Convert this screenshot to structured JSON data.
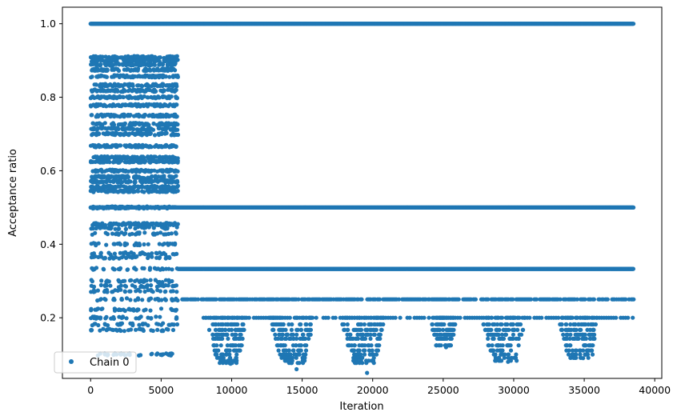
{
  "chart_data": {
    "type": "scatter",
    "xlabel": "Iteration",
    "ylabel": "Acceptance ratio",
    "xlim": [
      -2000,
      40500
    ],
    "ylim": [
      0.035,
      1.045
    ],
    "x_ticks": [
      0,
      5000,
      10000,
      15000,
      20000,
      25000,
      30000,
      35000,
      40000
    ],
    "x_tick_labels": [
      "0",
      "5000",
      "10000",
      "15000",
      "20000",
      "25000",
      "30000",
      "35000",
      "40000"
    ],
    "y_ticks": [
      0.2,
      0.4,
      0.6,
      0.8,
      1.0
    ],
    "y_tick_labels": [
      "0.2",
      "0.4",
      "0.6",
      "0.8",
      "1.0"
    ],
    "grid": false,
    "legend": {
      "position": "lower-left",
      "entries": [
        "Chain 0"
      ]
    },
    "series": [
      {
        "name": "Chain 0",
        "color": "#1f77b4",
        "marker": "circle",
        "bands": [
          {
            "y": 1.0,
            "x_range": [
              0,
              38500
            ],
            "density": "dense"
          },
          {
            "y": 0.5,
            "x_range": [
              0,
              38500
            ],
            "density": "dense"
          },
          {
            "y": 0.333,
            "x_range": [
              6200,
              38500
            ],
            "density": "dense"
          },
          {
            "y": 0.25,
            "x_range": [
              6500,
              38500
            ],
            "density": "medium"
          },
          {
            "y": 0.2,
            "x_range": [
              7500,
              38500
            ],
            "density": "sparse"
          }
        ],
        "early_cluster": {
          "x_range": [
            0,
            6200
          ],
          "levels": [
            0.909,
            0.9,
            0.889,
            0.875,
            0.857,
            0.833,
            0.818,
            0.8,
            0.778,
            0.75,
            0.727,
            0.714,
            0.7,
            0.667,
            0.636,
            0.625,
            0.6,
            0.583,
            0.571,
            0.556,
            0.545,
            0.5,
            0.455,
            0.444,
            0.429,
            0.4,
            0.375,
            0.364,
            0.333,
            0.3,
            0.286,
            0.273,
            0.25,
            0.222,
            0.2,
            0.182,
            0.167,
            0.1
          ]
        },
        "dips": [
          {
            "x_range": [
              8000,
              11200
            ],
            "min_y": 0.075
          },
          {
            "x_range": [
              12500,
              16000
            ],
            "min_y": 0.06
          },
          {
            "x_range": [
              17500,
              21000
            ],
            "min_y": 0.05
          },
          {
            "x_range": [
              24000,
              26000
            ],
            "min_y": 0.12
          },
          {
            "x_range": [
              27500,
              31000
            ],
            "min_y": 0.08
          },
          {
            "x_range": [
              33000,
              36200
            ],
            "min_y": 0.09
          }
        ]
      }
    ]
  }
}
